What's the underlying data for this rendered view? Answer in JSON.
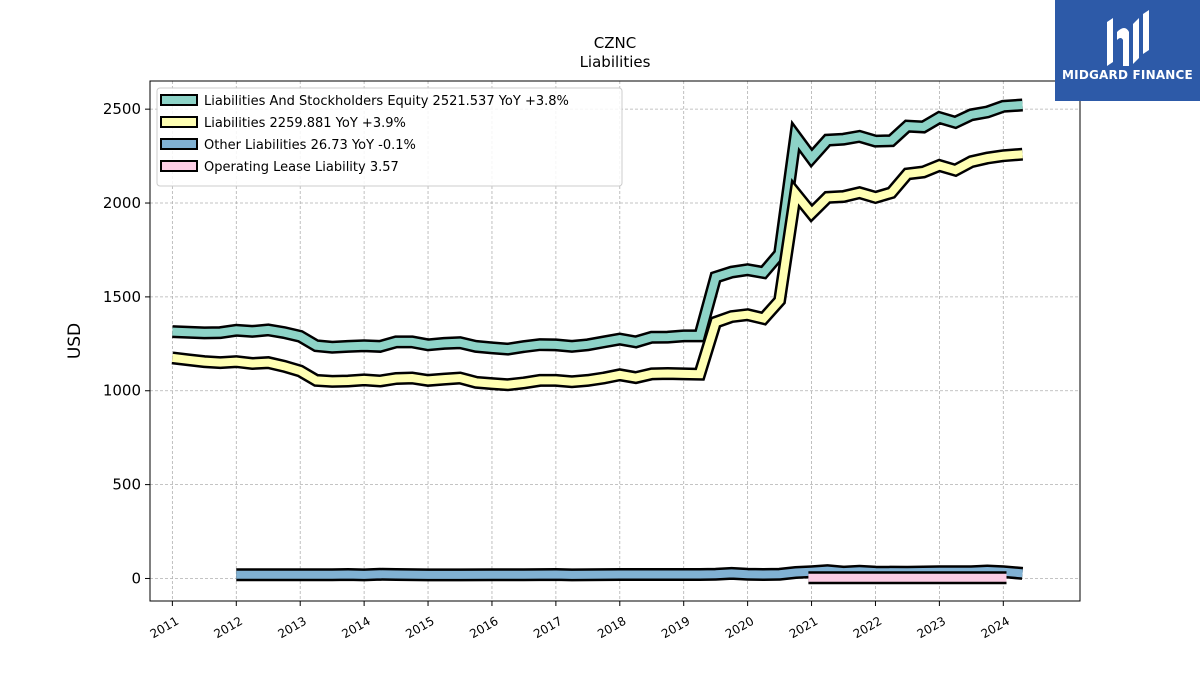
{
  "chart_data": {
    "type": "line",
    "title": "CZNC",
    "subtitle": "Liabilities",
    "ylabel": "USD",
    "xlabel": "",
    "ylim": [
      -120,
      2650
    ],
    "xlim": [
      2010.65,
      2025.2
    ],
    "yticks": [
      0,
      500,
      1000,
      1500,
      2000,
      2500
    ],
    "xticks": [
      "2011",
      "2012",
      "2013",
      "2014",
      "2015",
      "2016",
      "2017",
      "2018",
      "2019",
      "2020",
      "2021",
      "2022",
      "2023",
      "2024"
    ],
    "grid": true,
    "legend_position": "top-left",
    "series": [
      {
        "name": "Liabilities And Stockholders Equity",
        "legend_label": "Liabilities And Stockholders Equity  2521.537 YoY +3.8%",
        "color": "#8dd3c7",
        "x": [
          2011.0,
          2011.25,
          2011.5,
          2011.75,
          2012.0,
          2012.25,
          2012.5,
          2012.75,
          2013.0,
          2013.25,
          2013.5,
          2013.75,
          2014.0,
          2014.25,
          2014.5,
          2014.75,
          2015.0,
          2015.25,
          2015.5,
          2015.75,
          2016.0,
          2016.25,
          2016.5,
          2016.75,
          2017.0,
          2017.25,
          2017.5,
          2017.75,
          2018.0,
          2018.25,
          2018.5,
          2018.75,
          2019.0,
          2019.25,
          2019.5,
          2019.75,
          2020.0,
          2020.25,
          2020.5,
          2020.75,
          2021.0,
          2021.25,
          2021.5,
          2021.75,
          2022.0,
          2022.25,
          2022.5,
          2022.75,
          2023.0,
          2023.25,
          2023.5,
          2023.75,
          2024.0,
          2024.3
        ],
        "values": [
          1315,
          1312,
          1308,
          1310,
          1322,
          1316,
          1324,
          1310,
          1290,
          1240,
          1232,
          1236,
          1240,
          1236,
          1260,
          1260,
          1245,
          1252,
          1256,
          1236,
          1228,
          1222,
          1235,
          1246,
          1244,
          1236,
          1245,
          1260,
          1275,
          1260,
          1285,
          1286,
          1292,
          1292,
          1605,
          1632,
          1645,
          1630,
          1730,
          2355,
          2240,
          2335,
          2340,
          2355,
          2330,
          2332,
          2410,
          2405,
          2455,
          2430,
          2470,
          2485,
          2515,
          2522
        ]
      },
      {
        "name": "Liabilities",
        "legend_label": "Liabilities  2259.881 YoY +3.9%",
        "color": "#ffffb3",
        "x": [
          2011.0,
          2011.25,
          2011.5,
          2011.75,
          2012.0,
          2012.25,
          2012.5,
          2012.75,
          2013.0,
          2013.25,
          2013.5,
          2013.75,
          2014.0,
          2014.25,
          2014.5,
          2014.75,
          2015.0,
          2015.25,
          2015.5,
          2015.75,
          2016.0,
          2016.25,
          2016.5,
          2016.75,
          2017.0,
          2017.25,
          2017.5,
          2017.75,
          2018.0,
          2018.25,
          2018.5,
          2018.75,
          2019.0,
          2019.25,
          2019.5,
          2019.75,
          2020.0,
          2020.25,
          2020.5,
          2020.75,
          2021.0,
          2021.25,
          2021.5,
          2021.75,
          2022.0,
          2022.25,
          2022.5,
          2022.75,
          2023.0,
          2023.25,
          2023.5,
          2023.75,
          2024.0,
          2024.3
        ],
        "values": [
          1175,
          1165,
          1155,
          1150,
          1155,
          1145,
          1150,
          1130,
          1105,
          1055,
          1050,
          1052,
          1058,
          1052,
          1065,
          1068,
          1055,
          1062,
          1068,
          1045,
          1038,
          1032,
          1042,
          1055,
          1055,
          1048,
          1055,
          1068,
          1085,
          1070,
          1090,
          1092,
          1090,
          1088,
          1365,
          1395,
          1405,
          1385,
          1480,
          2050,
          1945,
          2030,
          2035,
          2055,
          2030,
          2055,
          2155,
          2165,
          2200,
          2175,
          2220,
          2240,
          2252,
          2260
        ]
      },
      {
        "name": "Other Liabilities",
        "legend_label": "Other Liabilities  26.73 YoY -0.1%",
        "color": "#80b1d3",
        "x": [
          2012.0,
          2012.5,
          2013.0,
          2013.5,
          2013.75,
          2014.0,
          2014.25,
          2014.5,
          2015.0,
          2015.5,
          2016.0,
          2016.5,
          2017.0,
          2017.25,
          2017.5,
          2018.0,
          2018.5,
          2019.0,
          2019.25,
          2019.5,
          2019.75,
          2020.0,
          2020.25,
          2020.5,
          2020.75,
          2021.0,
          2021.25,
          2021.5,
          2021.75,
          2022.0,
          2022.5,
          2023.0,
          2023.5,
          2023.75,
          2024.0,
          2024.3
        ],
        "values": [
          20,
          20,
          20,
          20,
          21,
          19,
          22,
          21,
          19,
          19,
          20,
          20,
          21,
          19,
          20,
          21,
          21,
          21,
          21,
          22,
          27,
          22,
          21,
          23,
          32,
          36,
          42,
          34,
          38,
          34,
          33,
          36,
          36,
          40,
          36,
          27
        ]
      },
      {
        "name": "Operating Lease Liability",
        "legend_label": "Operating Lease Liability  3.57",
        "color": "#fccde5",
        "x": [
          2020.95,
          2021.25,
          2021.5,
          2021.75,
          2022.0,
          2022.25,
          2022.5,
          2022.75,
          2023.0,
          2023.25,
          2023.5,
          2023.75,
          2024.05
        ],
        "values": [
          4,
          4,
          4,
          4,
          4,
          4,
          4,
          4,
          4,
          4,
          4,
          4,
          4
        ]
      }
    ]
  },
  "logo": {
    "text": "MIDGARD FINANCE",
    "color": "#2d5aa8"
  }
}
